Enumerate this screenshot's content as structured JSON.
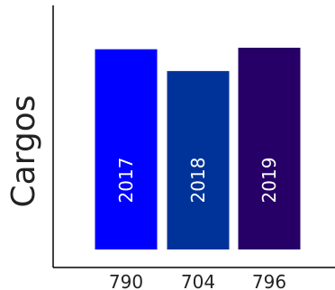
{
  "chart_data": {
    "type": "bar",
    "title": "",
    "xlabel": "",
    "ylabel": "Cargos",
    "categories": [
      "790",
      "704",
      "796"
    ],
    "bar_labels": [
      "2017",
      "2018",
      "2019"
    ],
    "values": [
      790,
      704,
      796
    ],
    "colors": [
      "#0000ff",
      "#003399",
      "#260066"
    ],
    "axis_color": "#000000",
    "grid": false,
    "legend": "none"
  }
}
